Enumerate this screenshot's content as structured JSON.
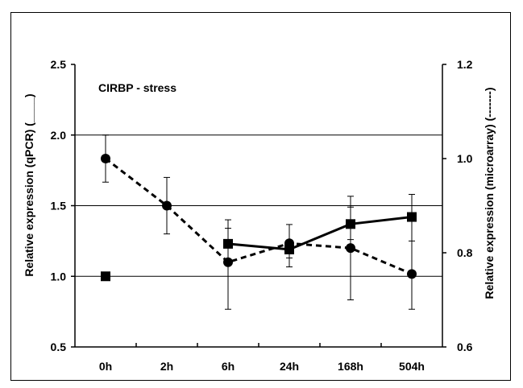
{
  "chart_data": {
    "type": "line",
    "title": "CIRBP - stress",
    "categories": [
      "0h",
      "2h",
      "6h",
      "24h",
      "168h",
      "504h"
    ],
    "ylabel": "Relative expression (qPCR)  (____)",
    "ylabel_right": "Relative expression (microarray)  (-------)",
    "ylim": [
      0.5,
      2.5
    ],
    "yticks": [
      "0.5",
      "1.0",
      "1.5",
      "2.0",
      "2.5"
    ],
    "ylim_right": [
      0.6,
      1.2
    ],
    "yticks_right": [
      "0.6",
      "0.8",
      "1.0",
      "1.2"
    ],
    "gridlines_y": [
      1.0,
      1.5,
      2.0
    ],
    "series": [
      {
        "name": "qPCR",
        "axis": "left",
        "marker": "square",
        "line": "solid",
        "values": [
          1.0,
          null,
          1.23,
          1.19,
          1.37,
          1.42
        ],
        "err_low": [
          null,
          null,
          1.12,
          1.13,
          1.26,
          1.25
        ],
        "err_high": [
          null,
          null,
          1.34,
          1.25,
          1.49,
          1.58
        ],
        "line_segments": [
          [
            2,
            5
          ]
        ]
      },
      {
        "name": "microarray",
        "axis": "right",
        "marker": "circle",
        "line": "dashed",
        "values": [
          1.0,
          0.9,
          0.78,
          0.82,
          0.81,
          0.755
        ],
        "err_low": [
          0.95,
          0.84,
          0.68,
          0.77,
          0.7,
          0.68
        ],
        "err_high": [
          1.05,
          0.96,
          0.87,
          0.86,
          0.92,
          0.88
        ],
        "line_segments": [
          [
            0,
            5
          ]
        ]
      }
    ],
    "colors": {
      "line": "#000000",
      "grid": "#000000",
      "background": "#ffffff"
    }
  }
}
